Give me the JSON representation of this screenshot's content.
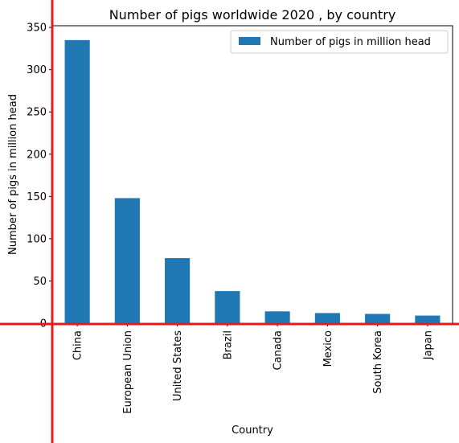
{
  "chart_data": {
    "type": "bar",
    "title": "Number of pigs worldwide 2020 , by country",
    "xlabel": "Country",
    "ylabel": "Number of pigs in million head",
    "categories": [
      "China",
      "European Union",
      "United States",
      "Brazil",
      "Canada",
      "Mexico",
      "South Korea",
      "Japan"
    ],
    "series": [
      {
        "name": "Number of pigs in million head",
        "values": [
          335,
          148,
          77,
          38,
          14,
          12,
          11,
          9
        ],
        "color": "#1f77b4"
      }
    ],
    "ylim": [
      0,
      352
    ],
    "yticks": [
      0,
      50,
      100,
      150,
      200,
      250,
      300,
      350
    ],
    "grid": false,
    "legend_position": "top-right",
    "annotation_color": "#e41a1c"
  }
}
